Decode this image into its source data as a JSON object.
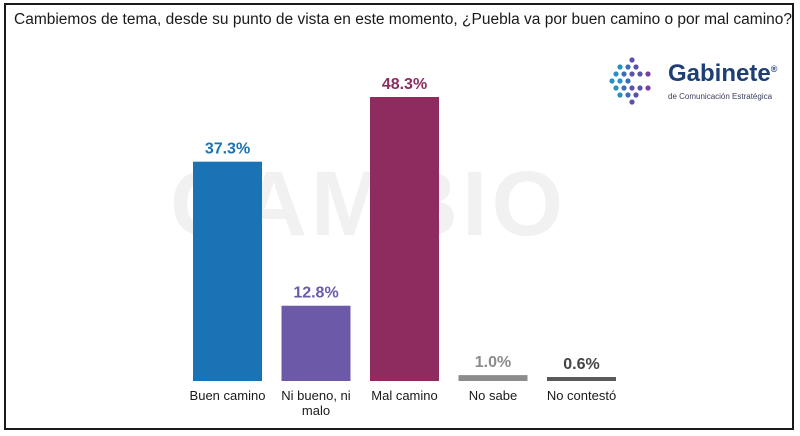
{
  "title": "Cambiemos de tema, desde su punto de vista en este momento, ¿Puebla va por buen camino o por mal camino?",
  "watermark": "CAMBIO",
  "logo": {
    "name": "Gabinete",
    "registered": "®",
    "subtitle": "de Comunicación Estratégica",
    "icon": "hexagon-dots-logo-icon"
  },
  "chart_data": {
    "type": "bar",
    "categories": [
      "Buen camino",
      "Ni bueno, ni malo",
      "Mal camino",
      "No sabe",
      "No contestó"
    ],
    "category_lines": [
      [
        "Buen camino"
      ],
      [
        "Ni bueno, ni",
        "malo"
      ],
      [
        "Mal camino"
      ],
      [
        "No sabe"
      ],
      [
        "No contestó"
      ]
    ],
    "values": [
      37.3,
      12.8,
      48.3,
      1.0,
      0.6
    ],
    "value_labels": [
      "37.3%",
      "12.8%",
      "48.3%",
      "1.0%",
      "0.6%"
    ],
    "colors": [
      "#1a73b5",
      "#6c5aa8",
      "#8e2b5f",
      "#8c8c8c",
      "#5a5a5a"
    ],
    "label_colors": [
      "#1a73b5",
      "#6c5aa8",
      "#8e2b5f",
      "#8c8c8c",
      "#444444"
    ],
    "ylim": [
      0,
      48.3
    ],
    "grid": false
  }
}
